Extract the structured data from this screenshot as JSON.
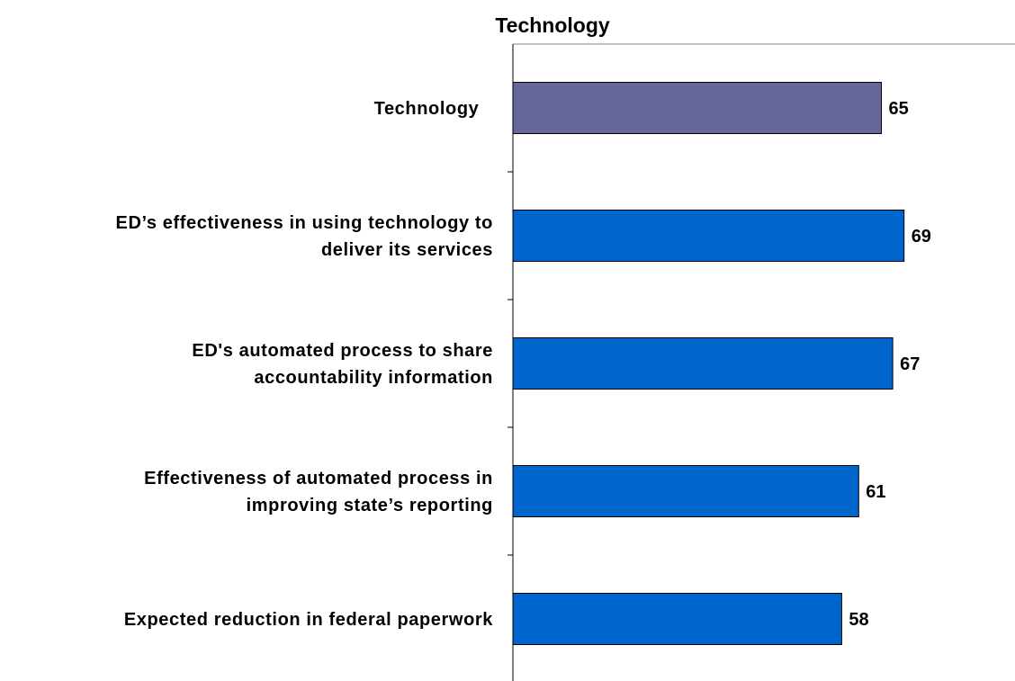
{
  "chart_data": {
    "type": "bar",
    "orientation": "horizontal",
    "title": "Technology",
    "categories": [
      "Technology",
      "ED’s effectiveness in using technology to deliver its services",
      "ED's automated process to share accountability information",
      "Effectiveness of automated process in improving state’s reporting",
      "Expected reduction in federal paperwork"
    ],
    "category_lines": [
      [
        "Technology"
      ],
      [
        "ED’s effectiveness in using technology to",
        "deliver its services"
      ],
      [
        "ED's automated process to share",
        "accountability information"
      ],
      [
        "Effectiveness of automated process in",
        "improving state’s reporting"
      ],
      [
        "Expected reduction in federal paperwork"
      ]
    ],
    "values": [
      65,
      69,
      67,
      61,
      58
    ],
    "value_labels": [
      "65",
      "69",
      "67",
      "61",
      "58"
    ],
    "bar_colors": [
      "#666699",
      "#0066CC",
      "#0066CC",
      "#0066CC",
      "#0066CC"
    ],
    "xlim": [
      0,
      100
    ],
    "grid": false,
    "legend": "none",
    "xlabel": "",
    "ylabel": ""
  }
}
